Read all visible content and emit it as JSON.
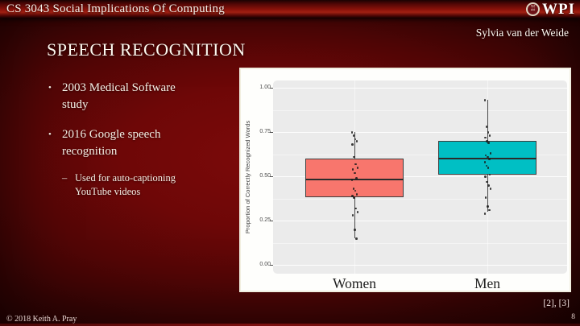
{
  "header": {
    "course_title": "CS 3043 Social Implications Of Computing",
    "logo_text": "WPI"
  },
  "author": "Sylvia van der Weide",
  "slide": {
    "title": "SPEECH RECOGNITION",
    "marker_l1": "•",
    "marker_l2": "–",
    "bullets": [
      {
        "level": 1,
        "text": "2003 Medical Software study"
      },
      {
        "level": 1,
        "text": "2016 Google speech recognition"
      },
      {
        "level": 2,
        "text": "Used for auto-captioning YouTube videos"
      }
    ]
  },
  "footer": {
    "copyright": "© 2018 Keith A. Pray",
    "citation": "[2], [3]",
    "page_number": "8"
  },
  "chart_data": {
    "type": "boxplot",
    "title": "",
    "xlabel": "",
    "ylabel": "Proportion of Correctly Recognized Words",
    "ylim": [
      0,
      1
    ],
    "grid": true,
    "legend": false,
    "panel_background": "#EBEBEB",
    "yticks": [
      {
        "label": "0.00",
        "value": 0
      },
      {
        "label": "0.25",
        "value": 0.25
      },
      {
        "label": "0.50",
        "value": 0.5
      },
      {
        "label": "0.75",
        "value": 0.75
      },
      {
        "label": "1.00",
        "value": 1
      }
    ],
    "categories": [
      "Women",
      "Men"
    ],
    "series": [
      {
        "name": "Women",
        "color": "#F8766D",
        "whisker_low": 0.15,
        "q1": 0.38,
        "median": 0.48,
        "q3": 0.6,
        "whisker_high": 0.75,
        "points": [
          0.75,
          0.73,
          0.71,
          0.7,
          0.68,
          0.61,
          0.57,
          0.55,
          0.54,
          0.52,
          0.49,
          0.48,
          0.43,
          0.42,
          0.4,
          0.39,
          0.38,
          0.32,
          0.3,
          0.28,
          0.2,
          0.15
        ]
      },
      {
        "name": "Men",
        "color": "#00BFC4",
        "whisker_low": 0.3,
        "q1": 0.51,
        "median": 0.6,
        "q3": 0.7,
        "whisker_high": 0.93,
        "points": [
          0.93,
          0.78,
          0.75,
          0.73,
          0.72,
          0.7,
          0.69,
          0.63,
          0.62,
          0.61,
          0.6,
          0.58,
          0.56,
          0.55,
          0.51,
          0.5,
          0.47,
          0.45,
          0.43,
          0.38,
          0.33,
          0.31,
          0.29
        ]
      }
    ]
  }
}
